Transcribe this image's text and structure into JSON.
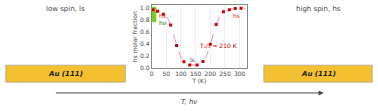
{
  "chart_data": {
    "type": "line",
    "xlabel": "T (K)",
    "ylabel": "hs molar fraction",
    "xlim": [
      0,
      325
    ],
    "ylim": [
      0.0,
      1.05
    ],
    "xticks": [
      0,
      50,
      100,
      150,
      200,
      250,
      300
    ],
    "yticks": [
      {
        "value": 0.0,
        "label": "0.0"
      },
      0.2,
      0.4,
      0.6,
      0.8,
      {
        "value": 1.0,
        "label": "1.0"
      }
    ],
    "grid": "x",
    "series": [
      {
        "type": "line",
        "line_style": "dashed",
        "color": "#ff8cb0",
        "x": [
          0,
          10,
          20,
          30,
          40,
          50,
          60,
          70,
          80,
          90,
          100,
          110,
          120,
          130,
          140,
          150,
          160,
          170,
          180,
          190,
          200,
          210,
          220,
          230,
          240,
          250,
          260,
          270,
          280,
          290,
          300,
          310,
          320
        ],
        "values": [
          0.98,
          0.97,
          0.95,
          0.93,
          0.91,
          0.88,
          0.78,
          0.64,
          0.48,
          0.32,
          0.18,
          0.11,
          0.07,
          0.055,
          0.05,
          0.05,
          0.06,
          0.09,
          0.14,
          0.24,
          0.4,
          0.58,
          0.73,
          0.84,
          0.91,
          0.95,
          0.97,
          0.985,
          0.99,
          1.0,
          1.0,
          1.0,
          1.0
        ]
      },
      {
        "type": "scatter",
        "marker": "square",
        "color": "#cc0000",
        "x": [
          5,
          20,
          40,
          65,
          85,
          110,
          130,
          155,
          175,
          200,
          220,
          245,
          265,
          285,
          305
        ],
        "values": [
          0.975,
          0.95,
          0.9,
          0.72,
          0.38,
          0.11,
          0.055,
          0.055,
          0.115,
          0.4,
          0.73,
          0.94,
          0.975,
          0.995,
          1.0
        ]
      }
    ],
    "bands": [
      {
        "x0": 0,
        "x1": 16,
        "color": "#66cc00"
      }
    ],
    "annotations": [
      {
        "text": "T₁/₂ = 210 K",
        "x": 155,
        "y": 0.38,
        "anchor": "middle",
        "color": "#bb0000"
      },
      {
        "text": "hs",
        "x": 20,
        "y": 0.975,
        "anchor": "top",
        "color": "#cc2200"
      },
      {
        "text": "hν",
        "x": 20,
        "y": 0.85,
        "anchor": "top",
        "color": "#226600"
      },
      {
        "text": "ls",
        "x": 125,
        "y": 0.055,
        "anchor": "bottom",
        "color": "#444444"
      },
      {
        "text": "hs",
        "x": 270,
        "y": 0.975,
        "anchor": "top",
        "color": "#cc2200"
      }
    ],
    "panels": [
      {
        "title": "low spin, ls",
        "label": "Au (111)"
      },
      {
        "title": "high spin, hs",
        "label": "Au (111)"
      }
    ],
    "au_color": "#f2c030",
    "arrow_label": "T, hν"
  }
}
